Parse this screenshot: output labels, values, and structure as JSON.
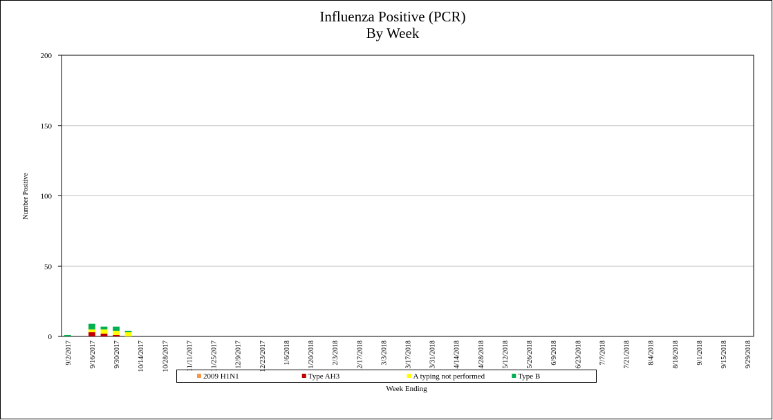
{
  "chart_data": {
    "type": "stacked_bar",
    "title": "Influenza Positive (PCR)",
    "subtitle": "By Week",
    "x_label": "Week Ending",
    "y_label": "Number Positive",
    "categories": [
      "9/2/2017",
      null,
      "9/16/2017",
      null,
      "9/30/2017",
      null,
      "10/14/2017",
      null,
      "10/28/2017",
      null,
      "11/11/2017",
      null,
      "11/25/2017",
      null,
      "12/9/2017",
      null,
      "12/23/2017",
      null,
      "1/6/2018",
      null,
      "1/20/2018",
      null,
      "2/3/2018",
      null,
      "2/17/2018",
      null,
      "3/3/2018",
      null,
      "3/17/2018",
      null,
      "3/31/2018",
      null,
      "4/14/2018",
      null,
      "4/28/2018",
      null,
      "5/12/2018",
      null,
      "5/26/2018",
      null,
      "6/9/2018",
      null,
      "6/23/2018",
      null,
      "7/7/2018",
      null,
      "7/21/2018",
      null,
      "8/4/2018",
      null,
      "8/18/2018",
      null,
      "9/1/2018",
      null,
      "9/15/2018",
      null,
      "9/29/2018"
    ],
    "series": [
      {
        "name": "2009 H1N1",
        "color": "#f79646",
        "values": [
          0,
          0,
          0,
          0,
          0,
          0,
          0,
          0,
          0,
          0,
          0,
          0,
          0,
          0,
          0,
          0,
          0,
          0,
          0,
          0,
          0,
          0,
          0,
          0,
          0,
          0,
          0,
          0,
          0,
          0,
          0,
          0,
          0,
          0,
          0,
          0,
          0,
          0,
          0,
          0,
          0,
          0,
          0,
          0,
          0,
          0,
          0,
          0,
          0,
          0,
          0,
          0,
          0,
          0,
          0,
          0,
          0
        ]
      },
      {
        "name": "Type AH3",
        "color": "#c00000",
        "values": [
          0,
          0,
          3,
          2,
          1,
          0,
          0,
          0,
          0,
          0,
          0,
          0,
          0,
          0,
          0,
          0,
          0,
          0,
          0,
          0,
          0,
          0,
          0,
          0,
          0,
          0,
          0,
          0,
          0,
          0,
          0,
          0,
          0,
          0,
          0,
          0,
          0,
          0,
          0,
          0,
          0,
          0,
          0,
          0,
          0,
          0,
          0,
          0,
          0,
          0,
          0,
          0,
          0,
          0,
          0,
          0,
          0
        ]
      },
      {
        "name": "A typing not performed",
        "color": "#ffff00",
        "values": [
          0,
          0,
          2,
          3,
          3,
          3,
          0,
          0,
          0,
          0,
          0,
          0,
          0,
          0,
          0,
          0,
          0,
          0,
          0,
          0,
          0,
          0,
          0,
          0,
          0,
          0,
          0,
          0,
          0,
          0,
          0,
          0,
          0,
          0,
          0,
          0,
          0,
          0,
          0,
          0,
          0,
          0,
          0,
          0,
          0,
          0,
          0,
          0,
          0,
          0,
          0,
          0,
          0,
          0,
          0,
          0,
          0
        ]
      },
      {
        "name": "Type B",
        "color": "#00b050",
        "values": [
          1,
          0,
          4,
          2,
          3,
          1,
          0,
          0,
          0,
          0,
          0,
          0,
          0,
          0,
          0,
          0,
          0,
          0,
          0,
          0,
          0,
          0,
          0,
          0,
          0,
          0,
          0,
          0,
          0,
          0,
          0,
          0,
          0,
          0,
          0,
          0,
          0,
          0,
          0,
          0,
          0,
          0,
          0,
          0,
          0,
          0,
          0,
          0,
          0,
          0,
          0,
          0,
          0,
          0,
          0,
          0,
          0
        ]
      }
    ],
    "ylim": [
      0,
      200
    ],
    "yticks": [
      0,
      50,
      100,
      150,
      200
    ],
    "grid": true,
    "legend": "bottom"
  }
}
